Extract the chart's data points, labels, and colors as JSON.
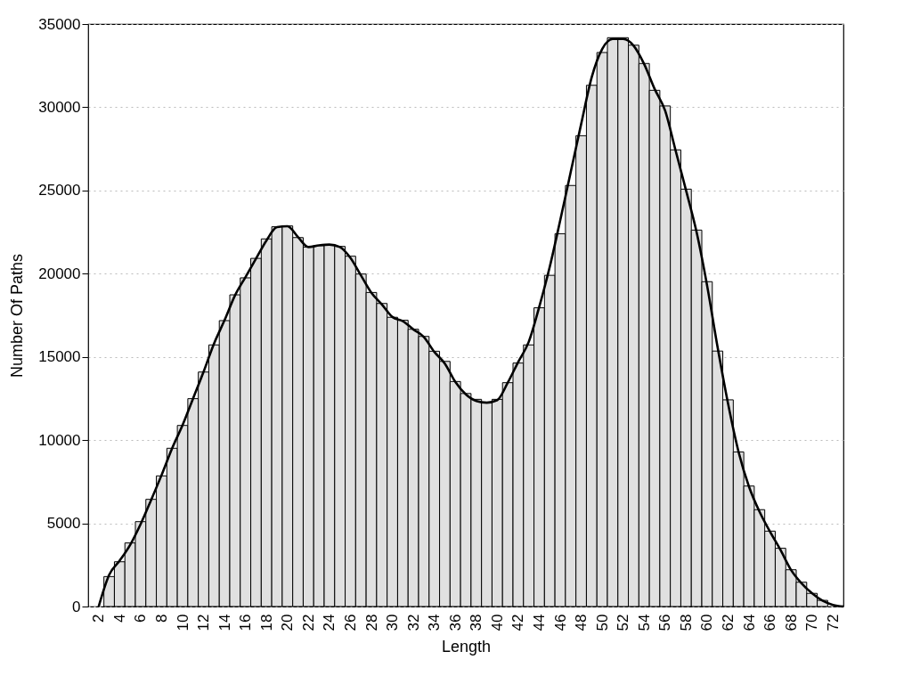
{
  "chart_data": {
    "type": "histogram",
    "xlabel": "Length",
    "ylabel": "Number Of Paths",
    "bins": [
      2.5,
      3.5,
      4.5,
      5.5,
      6.5,
      7.5,
      8.5,
      9.5,
      10.5,
      11.5,
      12.5,
      13.5,
      14.5,
      15.5,
      16.5,
      17.5,
      18.5,
      19.5,
      20.5,
      21.5,
      22.5,
      23.5,
      24.5,
      25.5,
      26.5,
      27.5,
      28.5,
      29.5,
      30.5,
      31.5,
      32.5,
      33.5,
      34.5,
      35.5,
      36.5,
      37.5,
      38.5,
      39.5,
      40.5,
      41.5,
      42.5,
      43.5,
      44.5,
      45.5,
      46.5,
      47.5,
      48.5,
      49.5,
      50.5,
      51.5,
      52.5,
      53.5,
      54.5,
      55.5,
      56.5,
      57.5,
      58.5,
      59.5,
      60.5,
      61.5,
      62.5,
      63.5,
      64.5,
      65.5,
      66.5,
      67.5,
      68.5,
      69.5,
      70.5,
      71.5
    ],
    "values": [
      1800,
      2690,
      3820,
      5100,
      6440,
      7850,
      9510,
      10880,
      12490,
      14090,
      15720,
      17180,
      18730,
      19750,
      20920,
      22090,
      22820,
      22870,
      22170,
      21600,
      21690,
      21750,
      21640,
      21050,
      19980,
      18870,
      18210,
      17380,
      17200,
      16660,
      16230,
      15340,
      14730,
      13520,
      12800,
      12450,
      12240,
      12450,
      13450,
      14630,
      15720,
      17950,
      19900,
      22400,
      25300,
      28290,
      31320,
      33290,
      34180,
      34180,
      33730,
      32630,
      31020,
      30080,
      27440,
      25080,
      22620,
      19520,
      15350,
      12420,
      9290,
      7240,
      5820,
      4530,
      3500,
      2210,
      1460,
      790,
      370
    ],
    "color": "#e0e0e0",
    "series": [
      {
        "type": "line",
        "color": "#000000",
        "x": [
          2,
          3,
          4,
          5,
          6,
          7,
          8,
          9,
          10,
          11,
          12,
          13,
          14,
          15,
          16,
          17,
          18,
          19,
          20,
          21,
          22,
          23,
          24,
          25,
          26,
          27,
          28,
          29,
          30,
          31,
          32,
          33,
          34,
          35,
          36,
          37,
          38,
          39,
          40,
          41,
          42,
          43,
          44,
          45,
          46,
          47,
          48,
          49,
          50,
          51,
          52,
          53,
          54,
          55,
          56,
          57,
          58,
          59,
          60,
          61,
          62,
          63,
          64,
          65,
          66,
          67,
          68,
          69,
          70,
          71,
          72,
          73
        ],
        "values": [
          0,
          1900,
          2750,
          3700,
          4950,
          6400,
          7900,
          9500,
          10900,
          12500,
          14100,
          15800,
          17200,
          18700,
          19800,
          20900,
          22000,
          22800,
          22850,
          22200,
          21600,
          21700,
          21750,
          21600,
          20950,
          19900,
          18850,
          18150,
          17400,
          17150,
          16650,
          16200,
          15300,
          14600,
          13500,
          12750,
          12350,
          12250,
          12400,
          13450,
          14700,
          15900,
          18000,
          20400,
          23200,
          26100,
          29000,
          31800,
          33500,
          34100,
          34100,
          33700,
          32600,
          31100,
          29800,
          27400,
          25000,
          22500,
          19300,
          15600,
          12200,
          9300,
          7200,
          5700,
          4500,
          3400,
          2200,
          1400,
          800,
          350,
          100,
          0
        ]
      }
    ],
    "xlim": [
      1,
      73
    ],
    "xticks": [
      2,
      4,
      6,
      8,
      10,
      12,
      14,
      16,
      18,
      20,
      22,
      24,
      26,
      28,
      30,
      32,
      34,
      36,
      38,
      40,
      42,
      44,
      46,
      48,
      50,
      52,
      54,
      56,
      58,
      60,
      62,
      64,
      66,
      68,
      70,
      72
    ],
    "ylim": [
      0,
      35000
    ],
    "yticks": [
      0,
      5000,
      10000,
      15000,
      20000,
      25000,
      30000,
      35000
    ],
    "grid": "y"
  }
}
